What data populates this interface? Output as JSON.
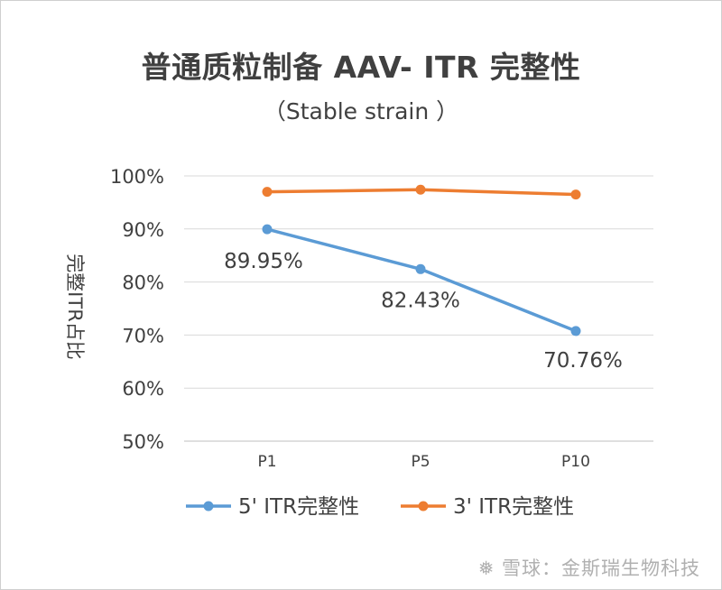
{
  "chart_data": {
    "type": "line",
    "title": "普通质粒制备 AAV- ITR 完整性",
    "subtitle": "（Stable strain ）",
    "ylabel": "完整ITR占比",
    "categories": [
      "P1",
      "P5",
      "P10"
    ],
    "ylim": [
      50,
      100
    ],
    "yticks": [
      "50%",
      "60%",
      "70%",
      "80%",
      "90%",
      "100%"
    ],
    "grid": true,
    "legend_position": "bottom",
    "series": [
      {
        "name": "5' ITR完整性",
        "values": [
          89.95,
          82.43,
          70.76
        ],
        "labels": [
          "89.95%",
          "82.43%",
          "70.76%"
        ],
        "color": "#5b9bd5"
      },
      {
        "name": "3' ITR完整性",
        "values": [
          97.0,
          97.4,
          96.5
        ],
        "color": "#ed7d31"
      }
    ]
  },
  "watermark": "雪球：金斯瑞生物科技",
  "watermark_icon": "snowball-logo-icon"
}
